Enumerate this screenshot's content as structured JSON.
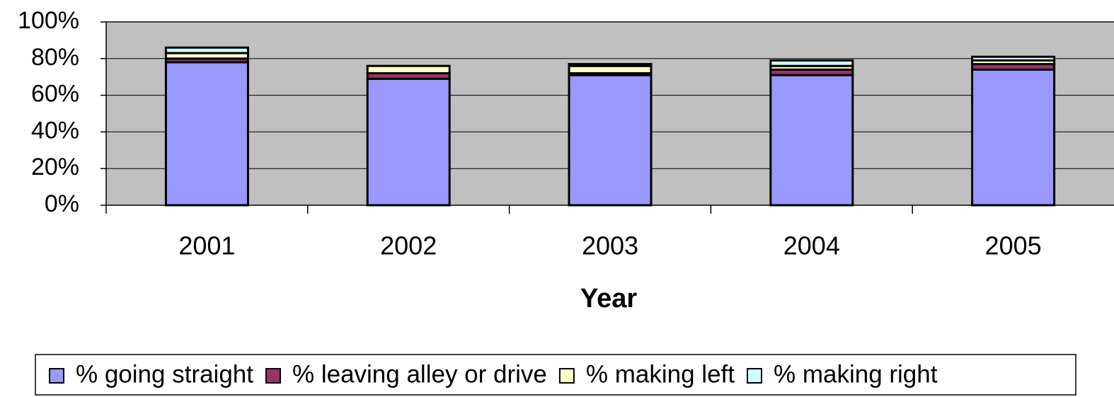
{
  "chart_data": {
    "type": "stacked_bar",
    "x_label": "Year",
    "categories": [
      "2001",
      "2002",
      "2003",
      "2004",
      "2005"
    ],
    "series": [
      {
        "name": "% going straight",
        "color": "#9999ff",
        "values": [
          78,
          69,
          71,
          71,
          74
        ]
      },
      {
        "name": "% leaving alley or drive",
        "color": "#993366",
        "values": [
          2,
          3,
          1,
          3,
          3
        ]
      },
      {
        "name": "% making left",
        "color": "#ffffcc",
        "values": [
          3,
          4,
          4,
          2,
          2
        ]
      },
      {
        "name": "% making right",
        "color": "#ccffff",
        "values": [
          3,
          0,
          1,
          3,
          2
        ]
      }
    ],
    "ylim": [
      0,
      100
    ],
    "yticks": [
      {
        "value": 0,
        "label": "0%"
      },
      {
        "value": 20,
        "label": "20%"
      },
      {
        "value": 40,
        "label": "40%"
      },
      {
        "value": 60,
        "label": "60%"
      },
      {
        "value": 80,
        "label": "80%"
      },
      {
        "value": 100,
        "label": "100%"
      }
    ],
    "grid": true,
    "plot_background": "#c0c0c0",
    "legend": "bottom"
  }
}
